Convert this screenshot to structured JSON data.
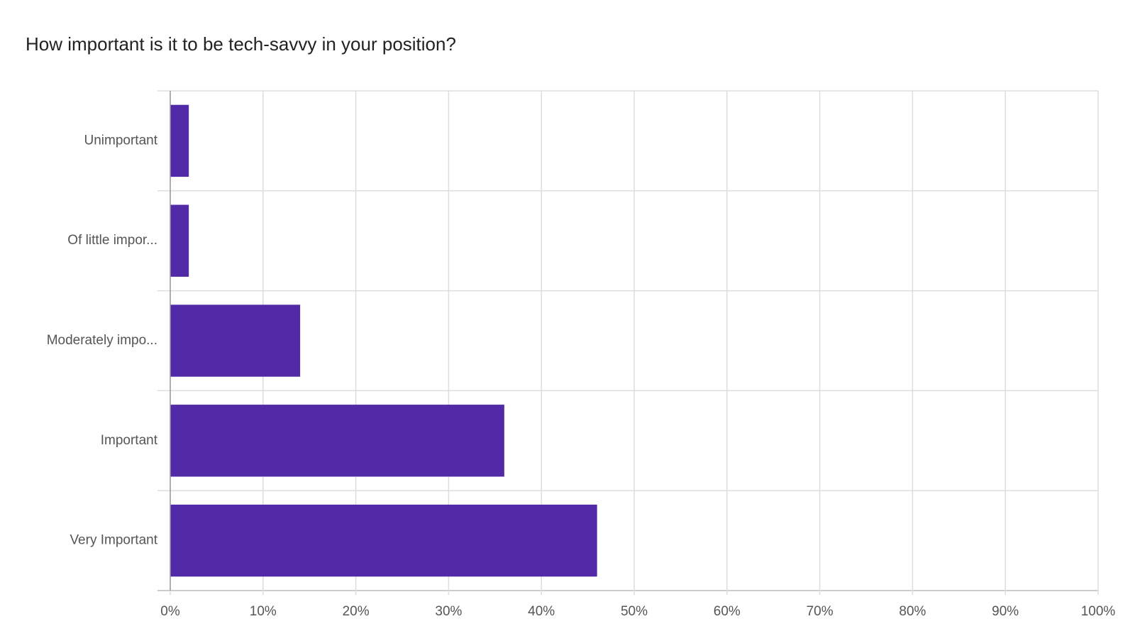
{
  "chart_data": {
    "type": "hbar",
    "title": "How important is it to be tech-savvy in your position?",
    "categories": [
      "Unimportant",
      "Of little impor...",
      "Moderately impo...",
      "Important",
      "Very Important"
    ],
    "values": [
      2,
      2,
      14,
      36,
      46
    ],
    "color": "#5229a7",
    "xlim": [
      0,
      100
    ],
    "xticks": [
      {
        "value": 0,
        "label": "0%"
      },
      {
        "value": 10,
        "label": "10%"
      },
      {
        "value": 20,
        "label": "20%"
      },
      {
        "value": 30,
        "label": "30%"
      },
      {
        "value": 40,
        "label": "40%"
      },
      {
        "value": 50,
        "label": "50%"
      },
      {
        "value": 60,
        "label": "60%"
      },
      {
        "value": 70,
        "label": "70%"
      },
      {
        "value": 80,
        "label": "80%"
      },
      {
        "value": 90,
        "label": "90%"
      },
      {
        "value": 100,
        "label": "100%"
      }
    ],
    "grid": true
  }
}
